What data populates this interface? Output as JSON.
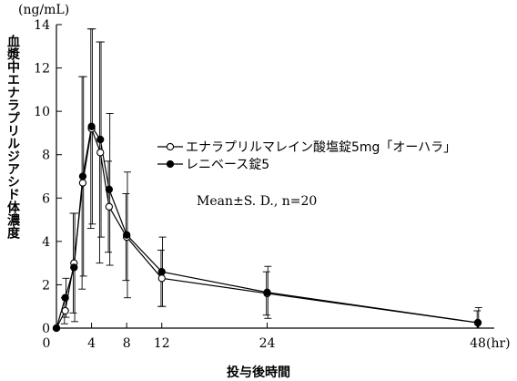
{
  "chart_data": {
    "type": "line",
    "ylabel": "血漿中エナラプリルジアシド体濃度",
    "xlabel": "投与後時間",
    "y_unit": "(ng/mL)",
    "x_unit": "(hr)",
    "ylim": [
      0,
      14
    ],
    "xlim": [
      0,
      48
    ],
    "yticks": [
      0,
      2,
      4,
      6,
      8,
      10,
      12,
      14
    ],
    "xticks": [
      0,
      4,
      8,
      12,
      24,
      48
    ],
    "grid": false,
    "legend_position": "right",
    "annotation": "Mean±S. D., n=20",
    "series": [
      {
        "name": "エナラプリルマレイン酸塩錠5mg「オーハラ」",
        "marker": "open-circle",
        "x": [
          0,
          1,
          2,
          3,
          4,
          5,
          6,
          8,
          12,
          24,
          48
        ],
        "y": [
          0.0,
          0.8,
          3.0,
          6.7,
          9.2,
          8.1,
          5.6,
          4.2,
          2.3,
          1.6,
          0.25
        ],
        "err": [
          0.0,
          0.6,
          2.3,
          4.9,
          4.6,
          5.1,
          2.1,
          2.0,
          1.3,
          1.0,
          0.55
        ]
      },
      {
        "name": "レニベース錠5",
        "marker": "filled-circle",
        "x": [
          0,
          1,
          2,
          3,
          4,
          5,
          6,
          8,
          12,
          24,
          48
        ],
        "y": [
          0.0,
          1.4,
          2.8,
          7.0,
          9.3,
          8.7,
          6.4,
          4.3,
          2.6,
          1.65,
          0.25
        ],
        "err": [
          0.0,
          0.9,
          2.5,
          4.6,
          4.5,
          4.5,
          3.5,
          2.9,
          1.6,
          1.2,
          0.7
        ]
      }
    ]
  }
}
